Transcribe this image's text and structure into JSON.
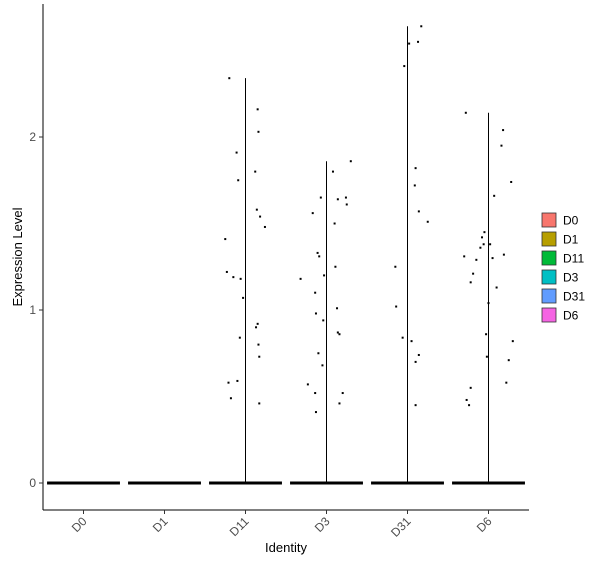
{
  "chart_data": {
    "type": "violin",
    "xlabel": "Identity",
    "ylabel": "Expression Level",
    "categories": [
      "D0",
      "D1",
      "D11",
      "D3",
      "D31",
      "D6"
    ],
    "ylim": [
      -0.15,
      2.7
    ],
    "yticks": [
      0,
      1,
      2
    ],
    "legend": {
      "placement": "right",
      "entries": [
        {
          "label": "D0",
          "color": "#F8766D"
        },
        {
          "label": "D1",
          "color": "#B79F00"
        },
        {
          "label": "D11",
          "color": "#00BA38"
        },
        {
          "label": "D3",
          "color": "#00BFC4"
        },
        {
          "label": "D31",
          "color": "#619CFF"
        },
        {
          "label": "D6",
          "color": "#F564E3"
        }
      ]
    },
    "series": [
      {
        "category": "D0",
        "max": 0,
        "points": []
      },
      {
        "category": "D1",
        "max": 0,
        "points": []
      },
      {
        "category": "D11",
        "max": 2.34,
        "points": [
          [
            -0.25,
            1.41
          ],
          [
            -0.2,
            2.34
          ],
          [
            -0.23,
            1.22
          ],
          [
            -0.15,
            1.19
          ],
          [
            -0.11,
            1.91
          ],
          [
            -0.09,
            1.75
          ],
          [
            -0.06,
            1.18
          ],
          [
            -0.03,
            1.07
          ],
          [
            -0.21,
            0.58
          ],
          [
            -0.18,
            0.49
          ],
          [
            -0.1,
            0.59
          ],
          [
            -0.07,
            0.84
          ],
          [
            0.12,
            1.8
          ],
          [
            0.15,
            2.16
          ],
          [
            0.16,
            2.03
          ],
          [
            0.14,
            1.58
          ],
          [
            0.18,
            1.54
          ],
          [
            0.24,
            1.48
          ],
          [
            0.13,
            0.9
          ],
          [
            0.15,
            0.92
          ],
          [
            0.16,
            0.8
          ],
          [
            0.17,
            0.73
          ],
          [
            0.17,
            0.46
          ]
        ]
      },
      {
        "category": "D3",
        "max": 1.86,
        "points": [
          [
            -0.32,
            1.18
          ],
          [
            -0.23,
            0.57
          ],
          [
            -0.17,
            1.56
          ],
          [
            -0.14,
            1.1
          ],
          [
            -0.13,
            0.98
          ],
          [
            -0.11,
            1.33
          ],
          [
            -0.09,
            1.31
          ],
          [
            -0.07,
            1.65
          ],
          [
            -0.03,
            1.2
          ],
          [
            -0.04,
            0.94
          ],
          [
            -0.05,
            0.68
          ],
          [
            -0.1,
            0.75
          ],
          [
            -0.14,
            0.52
          ],
          [
            -0.13,
            0.41
          ],
          [
            0.08,
            1.8
          ],
          [
            0.1,
            1.5
          ],
          [
            0.11,
            1.25
          ],
          [
            0.14,
            1.64
          ],
          [
            0.13,
            1.01
          ],
          [
            0.14,
            0.87
          ],
          [
            0.16,
            0.86
          ],
          [
            0.16,
            0.46
          ],
          [
            0.2,
            0.52
          ],
          [
            0.24,
            1.65
          ],
          [
            0.25,
            1.61
          ],
          [
            0.3,
            1.86
          ]
        ]
      },
      {
        "category": "D31",
        "max": 2.64,
        "points": [
          [
            -0.04,
            2.41
          ],
          [
            0.02,
            2.54
          ],
          [
            0.13,
            2.55
          ],
          [
            0.17,
            2.64
          ],
          [
            -0.15,
            1.25
          ],
          [
            -0.14,
            1.02
          ],
          [
            -0.06,
            0.84
          ],
          [
            0.05,
            0.82
          ],
          [
            0.1,
            1.82
          ],
          [
            0.09,
            1.72
          ],
          [
            0.14,
            1.57
          ],
          [
            0.25,
            1.51
          ],
          [
            0.1,
            0.7
          ],
          [
            0.14,
            0.74
          ],
          [
            0.1,
            0.45
          ]
        ]
      },
      {
        "category": "D6",
        "max": 2.14,
        "points": [
          [
            -0.3,
            1.31
          ],
          [
            -0.28,
            2.14
          ],
          [
            -0.27,
            0.48
          ],
          [
            -0.24,
            0.45
          ],
          [
            -0.22,
            0.55
          ],
          [
            -0.22,
            1.16
          ],
          [
            -0.19,
            1.21
          ],
          [
            -0.15,
            1.29
          ],
          [
            -0.1,
            1.36
          ],
          [
            -0.08,
            1.42
          ],
          [
            -0.05,
            1.45
          ],
          [
            -0.06,
            1.38
          ],
          [
            -0.03,
            0.86
          ],
          [
            -0.02,
            0.73
          ],
          [
            0.0,
            1.04
          ],
          [
            0.02,
            1.38
          ],
          [
            0.05,
            1.3
          ],
          [
            0.07,
            1.66
          ],
          [
            0.1,
            1.13
          ],
          [
            0.16,
            1.95
          ],
          [
            0.18,
            2.04
          ],
          [
            0.19,
            1.32
          ],
          [
            0.22,
            0.58
          ],
          [
            0.25,
            0.71
          ],
          [
            0.28,
            1.74
          ],
          [
            0.3,
            0.82
          ]
        ]
      }
    ]
  }
}
